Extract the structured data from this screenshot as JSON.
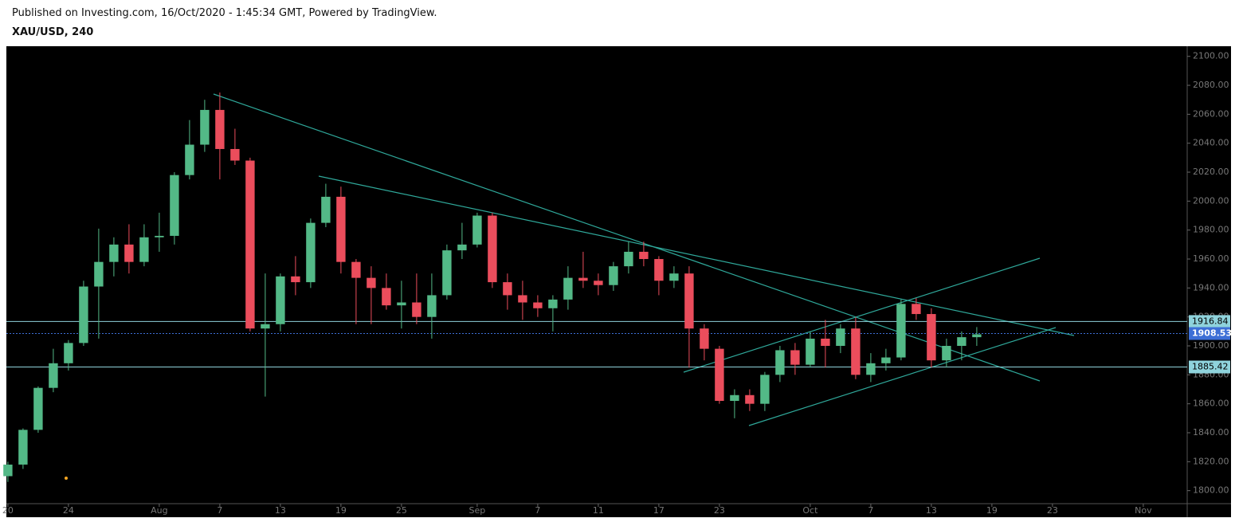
{
  "header": {
    "published": "Published on Investing.com, 16/Oct/2020 - 1:45:34 GMT, Powered by TradingView.",
    "symbol": "XAU/USD, 240"
  },
  "chart_data": {
    "type": "candlestick",
    "categories": [
      "Jul 20",
      "Jul 21",
      "Jul 22",
      "Jul 23",
      "Jul 24",
      "Jul 27",
      "Jul 28",
      "Jul 29",
      "Jul 30",
      "Jul 31",
      "Aug 3",
      "Aug 4",
      "Aug 5",
      "Aug 6",
      "Aug 7",
      "Aug 10",
      "Aug 11",
      "Aug 12",
      "Aug 13",
      "Aug 14",
      "Aug 17",
      "Aug 18",
      "Aug 19",
      "Aug 20",
      "Aug 21",
      "Aug 24",
      "Aug 25",
      "Aug 26",
      "Aug 27",
      "Aug 28",
      "Aug 31",
      "Sep 1",
      "Sep 2",
      "Sep 3",
      "Sep 4",
      "Sep 7",
      "Sep 8",
      "Sep 9",
      "Sep 10",
      "Sep 11",
      "Sep 14",
      "Sep 15",
      "Sep 16",
      "Sep 17",
      "Sep 18",
      "Sep 21",
      "Sep 22",
      "Sep 23",
      "Sep 24",
      "Sep 25",
      "Sep 28",
      "Sep 29",
      "Sep 30",
      "Oct 1",
      "Oct 2",
      "Oct 5",
      "Oct 6",
      "Oct 7",
      "Oct 8",
      "Oct 9",
      "Oct 12",
      "Oct 13",
      "Oct 14",
      "Oct 15",
      "Oct 16",
      "Oct 19",
      "Oct 20",
      "Oct 21",
      "Oct 22",
      "Oct 23",
      "Oct 26",
      "Oct 27",
      "Oct 28",
      "Oct 29",
      "Oct 30",
      "Nov 2"
    ],
    "open": [
      1810,
      1818,
      1842,
      1871,
      1888,
      1902,
      1941,
      1958,
      1970,
      1958,
      1975,
      1976,
      2018,
      2039,
      2063,
      2036,
      2028,
      1912,
      1915,
      1948,
      1944,
      1985,
      2003,
      1958,
      1947,
      1940,
      1928,
      1930,
      1920,
      1935,
      1966,
      1970,
      1990,
      1944,
      1935,
      1930,
      1926,
      1932,
      1947,
      1945,
      1942,
      1955,
      1965,
      1960,
      1945,
      1950,
      1912,
      1898,
      1862,
      1866,
      1860,
      1880,
      1897,
      1887,
      1905,
      1900,
      1912,
      1880,
      1888,
      1892,
      1929,
      1922,
      1890,
      1900,
      1906,
      null,
      null,
      null,
      null,
      null,
      null,
      null,
      null,
      null,
      null,
      null
    ],
    "high": [
      1820,
      1843,
      1872,
      1898,
      1904,
      1945,
      1981,
      1975,
      1984,
      1984,
      1992,
      2020,
      2056,
      2070,
      2075,
      2050,
      2030,
      1950,
      1950,
      1962,
      1988,
      2012,
      2010,
      1960,
      1955,
      1950,
      1945,
      1950,
      1950,
      1970,
      1985,
      1992,
      1992,
      1950,
      1945,
      1935,
      1935,
      1955,
      1965,
      1950,
      1958,
      1972,
      1972,
      1962,
      1955,
      1955,
      1915,
      1900,
      1870,
      1870,
      1882,
      1900,
      1902,
      1910,
      1918,
      1915,
      1920,
      1895,
      1898,
      1932,
      1933,
      1926,
      1905,
      1910,
      1913,
      null,
      null,
      null,
      null,
      null,
      null,
      null,
      null,
      null,
      null,
      null
    ],
    "low": [
      1806,
      1815,
      1840,
      1868,
      1883,
      1900,
      1905,
      1948,
      1950,
      1955,
      1965,
      1970,
      2015,
      2034,
      2015,
      2025,
      1910,
      1865,
      1910,
      1935,
      1940,
      1982,
      1950,
      1915,
      1915,
      1925,
      1912,
      1915,
      1905,
      1932,
      1960,
      1968,
      1940,
      1925,
      1918,
      1920,
      1910,
      1925,
      1940,
      1935,
      1938,
      1950,
      1955,
      1935,
      1940,
      1885,
      1890,
      1860,
      1850,
      1855,
      1855,
      1875,
      1880,
      1885,
      1885,
      1895,
      1877,
      1875,
      1883,
      1890,
      1918,
      1885,
      1885,
      1890,
      1900,
      null,
      null,
      null,
      null,
      null,
      null,
      null,
      null,
      null,
      null,
      null
    ],
    "close": [
      1818,
      1842,
      1871,
      1888,
      1902,
      1941,
      1958,
      1970,
      1958,
      1975,
      1976,
      2018,
      2039,
      2063,
      2036,
      2028,
      1912,
      1915,
      1948,
      1944,
      1985,
      2003,
      1958,
      1947,
      1940,
      1928,
      1930,
      1920,
      1935,
      1966,
      1970,
      1990,
      1944,
      1935,
      1930,
      1926,
      1932,
      1947,
      1945,
      1942,
      1955,
      1965,
      1960,
      1945,
      1950,
      1912,
      1898,
      1862,
      1866,
      1860,
      1880,
      1897,
      1887,
      1905,
      1900,
      1912,
      1880,
      1888,
      1892,
      1929,
      1922,
      1890,
      1900,
      1906,
      1908,
      null,
      null,
      null,
      null,
      null,
      null,
      null,
      null,
      null,
      null,
      null
    ],
    "up_color": "#53b987",
    "down_color": "#eb4d5c",
    "ylim": [
      1791,
      2107
    ],
    "yticks": [
      {
        "value": 1800,
        "label": "1800.00"
      },
      {
        "value": 1820,
        "label": "1820.00"
      },
      {
        "value": 1840,
        "label": "1840.00"
      },
      {
        "value": 1860,
        "label": "1860.00"
      },
      {
        "value": 1880,
        "label": "1880.00"
      },
      {
        "value": 1900,
        "label": "1900.00"
      },
      {
        "value": 1920,
        "label": "1920.00"
      },
      {
        "value": 1940,
        "label": "1940.00"
      },
      {
        "value": 1960,
        "label": "1960.00"
      },
      {
        "value": 1980,
        "label": "1980.00"
      },
      {
        "value": 2000,
        "label": "2000.00"
      },
      {
        "value": 2020,
        "label": "2020.00"
      },
      {
        "value": 2040,
        "label": "2040.00"
      },
      {
        "value": 2060,
        "label": "2060.00"
      },
      {
        "value": 2080,
        "label": "2080.00"
      },
      {
        "value": 2100,
        "label": "2100.00"
      }
    ],
    "xticks": [
      {
        "value": "Jul 20",
        "label": "20"
      },
      {
        "value": "Jul 24",
        "label": "24"
      },
      {
        "value": "Aug 3",
        "label": "Aug"
      },
      {
        "value": "Aug 7",
        "label": "7"
      },
      {
        "value": "Aug 13",
        "label": "13"
      },
      {
        "value": "Aug 19",
        "label": "19"
      },
      {
        "value": "Aug 25",
        "label": "25"
      },
      {
        "value": "Sep 1",
        "label": "Sep"
      },
      {
        "value": "Sep 7",
        "label": "7"
      },
      {
        "value": "Sep 11",
        "label": "11"
      },
      {
        "value": "Sep 17",
        "label": "17"
      },
      {
        "value": "Sep 23",
        "label": "23"
      },
      {
        "value": "Oct 1",
        "label": "Oct"
      },
      {
        "value": "Oct 7",
        "label": "7"
      },
      {
        "value": "Oct 13",
        "label": "13"
      },
      {
        "value": "Oct 19",
        "label": "19"
      },
      {
        "value": "Oct 23",
        "label": "23"
      },
      {
        "value": "Nov 2",
        "label": "Nov"
      }
    ],
    "levels": [
      {
        "value": 1916.84,
        "color": "#8fd3dc"
      },
      {
        "value": 1885.42,
        "color": "#8fd3dc"
      }
    ],
    "last_price": {
      "value": 1908.53,
      "color": "#3d6fd6"
    }
  }
}
